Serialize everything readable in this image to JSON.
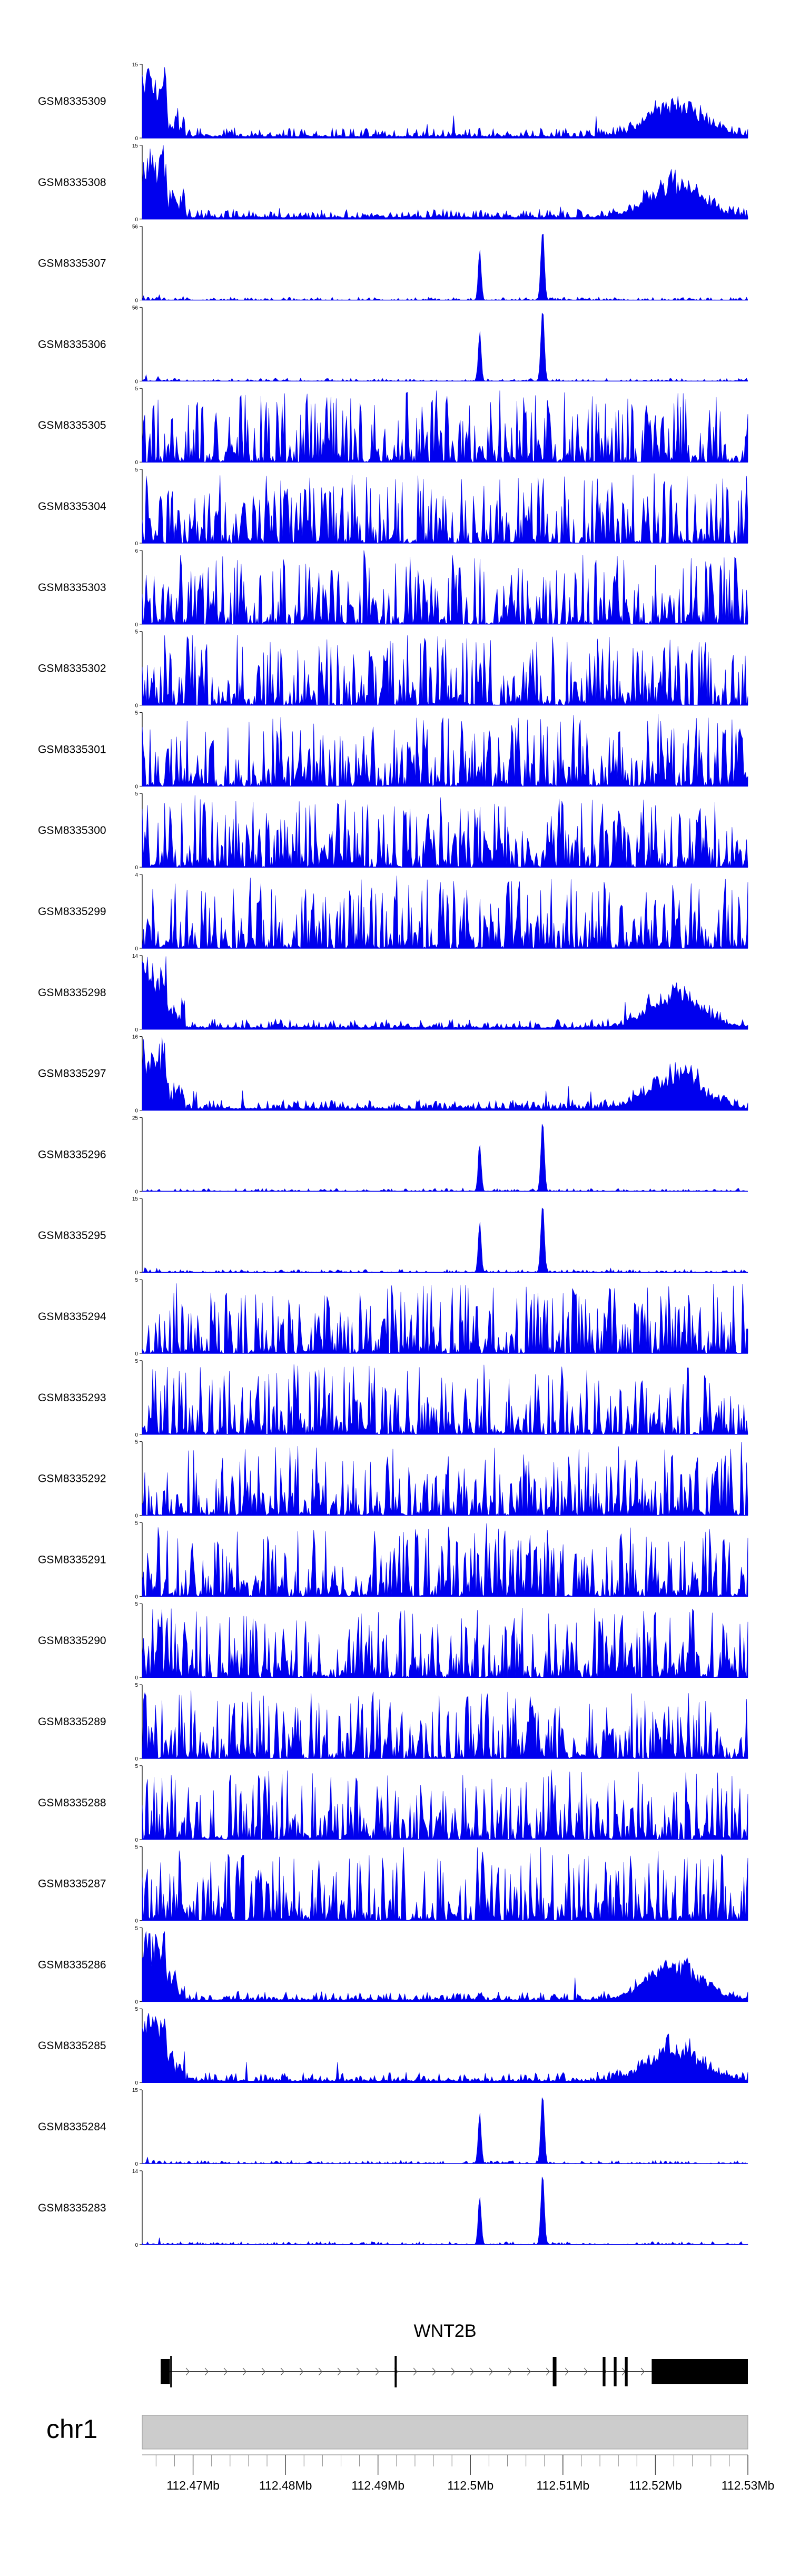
{
  "chart_data": {
    "type": "area",
    "title": "",
    "xlabel": "",
    "ylabel": "",
    "xlim": [
      112.4645,
      112.53
    ],
    "x_unit": "Mb",
    "x_ticks": [
      112.47,
      112.48,
      112.49,
      112.5,
      112.51,
      112.52,
      112.53
    ],
    "x_tick_labels": [
      "112.47Mb",
      "112.48Mb",
      "112.49Mb",
      "112.5Mb",
      "112.51Mb",
      "112.52Mb",
      "112.53Mb"
    ],
    "chromosome": "chr1",
    "peak_centers_mb": [
      112.501,
      112.5078
    ],
    "series": [
      {
        "name": "GSM8335309",
        "ymax": 15,
        "profile": "promoter"
      },
      {
        "name": "GSM8335308",
        "ymax": 15,
        "profile": "promoter"
      },
      {
        "name": "GSM8335307",
        "ymax": 56,
        "profile": "peaks"
      },
      {
        "name": "GSM8335306",
        "ymax": 56,
        "profile": "peaks"
      },
      {
        "name": "GSM8335305",
        "ymax": 5,
        "profile": "noise"
      },
      {
        "name": "GSM8335304",
        "ymax": 5,
        "profile": "noise"
      },
      {
        "name": "GSM8335303",
        "ymax": 6,
        "profile": "noise"
      },
      {
        "name": "GSM8335302",
        "ymax": 5,
        "profile": "noise"
      },
      {
        "name": "GSM8335301",
        "ymax": 5,
        "profile": "noise"
      },
      {
        "name": "GSM8335300",
        "ymax": 5,
        "profile": "noise"
      },
      {
        "name": "GSM8335299",
        "ymax": 4,
        "profile": "noise"
      },
      {
        "name": "GSM8335298",
        "ymax": 14,
        "profile": "promoter"
      },
      {
        "name": "GSM8335297",
        "ymax": 16,
        "profile": "promoter"
      },
      {
        "name": "GSM8335296",
        "ymax": 25,
        "profile": "peaks"
      },
      {
        "name": "GSM8335295",
        "ymax": 15,
        "profile": "peaks"
      },
      {
        "name": "GSM8335294",
        "ymax": 5,
        "profile": "noise"
      },
      {
        "name": "GSM8335293",
        "ymax": 5,
        "profile": "noise"
      },
      {
        "name": "GSM8335292",
        "ymax": 5,
        "profile": "noise"
      },
      {
        "name": "GSM8335291",
        "ymax": 5,
        "profile": "noise"
      },
      {
        "name": "GSM8335290",
        "ymax": 5,
        "profile": "noise"
      },
      {
        "name": "GSM8335289",
        "ymax": 5,
        "profile": "noise"
      },
      {
        "name": "GSM8335288",
        "ymax": 5,
        "profile": "noise"
      },
      {
        "name": "GSM8335287",
        "ymax": 5,
        "profile": "noise"
      },
      {
        "name": "GSM8335286",
        "ymax": 5,
        "profile": "promoter"
      },
      {
        "name": "GSM8335285",
        "ymax": 5,
        "profile": "promoter"
      },
      {
        "name": "GSM8335284",
        "ymax": 15,
        "profile": "peaks"
      },
      {
        "name": "GSM8335283",
        "ymax": 14,
        "profile": "peaks"
      }
    ],
    "ymin": 0,
    "gene": {
      "name": "WNT2B",
      "strand": "+",
      "start_mb": 112.4665,
      "end_mb": 112.53,
      "exons_mb": [
        [
          112.4665,
          112.4675
        ],
        [
          112.4918,
          112.492
        ],
        [
          112.5089,
          112.5093
        ],
        [
          112.5143,
          112.5146
        ],
        [
          112.5155,
          112.5158
        ],
        [
          112.5167,
          112.517
        ],
        [
          112.5196,
          112.53
        ]
      ]
    },
    "colors": {
      "signal": "#0000ee",
      "axis": "#000000",
      "ideogram": "#cccccc",
      "gene": "#000000"
    }
  }
}
